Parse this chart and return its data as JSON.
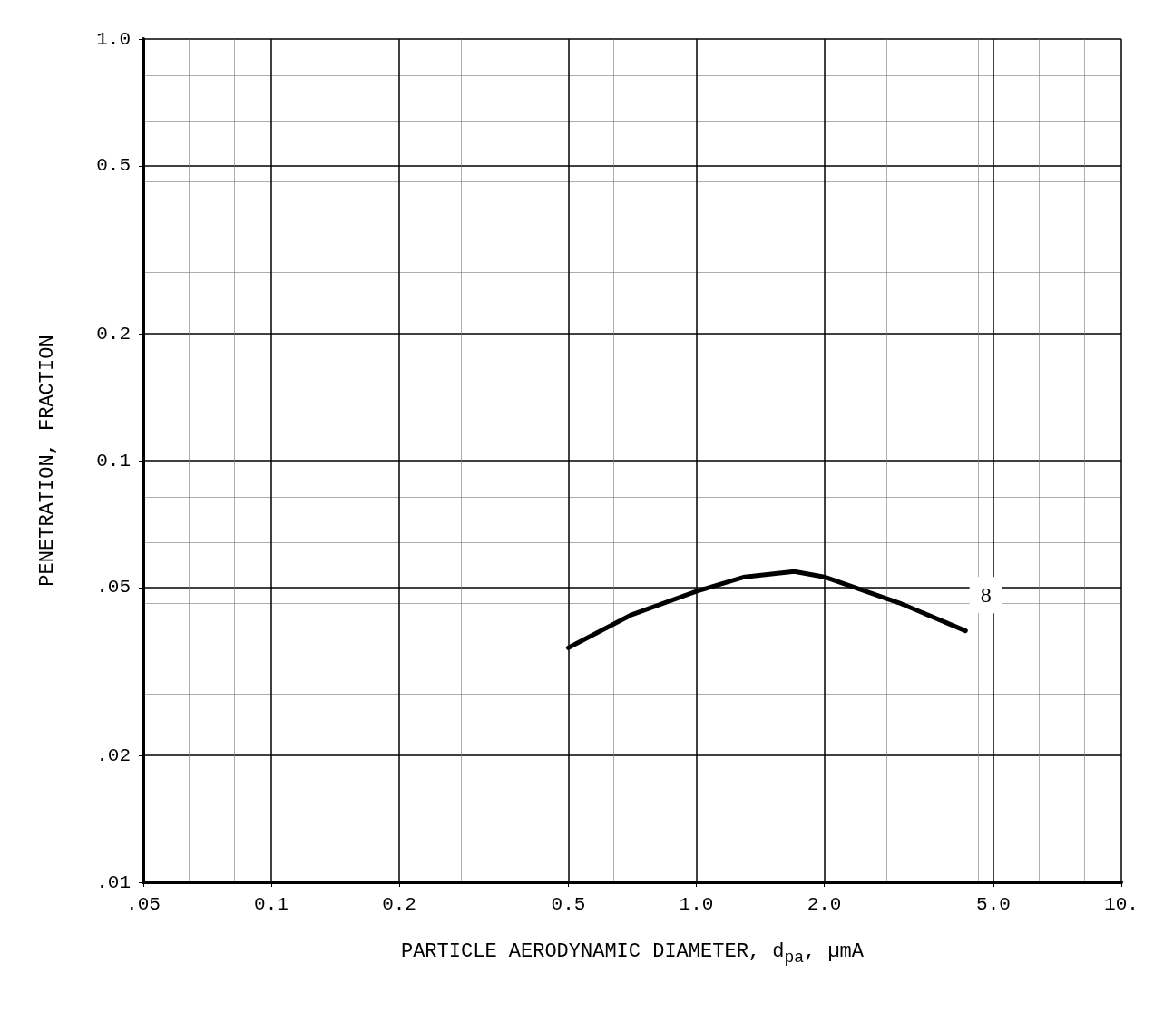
{
  "chart_data": {
    "type": "line",
    "xlabel": "PARTICLE AERODYNAMIC DIAMETER, d$_{pa}$, µmA",
    "ylabel": "PENETRATION, FRACTION",
    "log": "xy",
    "xlim": [
      0.05,
      10
    ],
    "ylim": [
      0.01,
      1
    ],
    "xticks": [
      {
        "value": 0.05,
        "label": ".05"
      },
      {
        "value": 0.1,
        "label": "0.1"
      },
      {
        "value": 0.2,
        "label": "0.2"
      },
      {
        "value": 0.5,
        "label": "0.5"
      },
      {
        "value": 1,
        "label": "1.0"
      },
      {
        "value": 2,
        "label": "2.0"
      },
      {
        "value": 5,
        "label": "5.0"
      },
      {
        "value": 10,
        "label": "10."
      }
    ],
    "yticks": [
      {
        "value": 0.01,
        "label": ".01"
      },
      {
        "value": 0.02,
        "label": ".02"
      },
      {
        "value": 0.05,
        "label": ".05"
      },
      {
        "value": 0.1,
        "label": "0.1"
      },
      {
        "value": 0.2,
        "label": "0.2"
      },
      {
        "value": 0.5,
        "label": "0.5"
      },
      {
        "value": 1,
        "label": "1.0"
      }
    ],
    "grid": true,
    "marker": "none",
    "line_style": "solid",
    "series": [
      {
        "color": "#000000",
        "x": [
          0.5,
          0.7,
          1.0,
          1.3,
          1.7,
          2.0,
          3.0,
          4.3
        ],
        "values": [
          0.036,
          0.043,
          0.049,
          0.053,
          0.0546,
          0.053,
          0.046,
          0.0395
        ]
      }
    ],
    "annotations": [
      {
        "text": "8",
        "x": 4.8,
        "y": 0.048
      }
    ]
  }
}
